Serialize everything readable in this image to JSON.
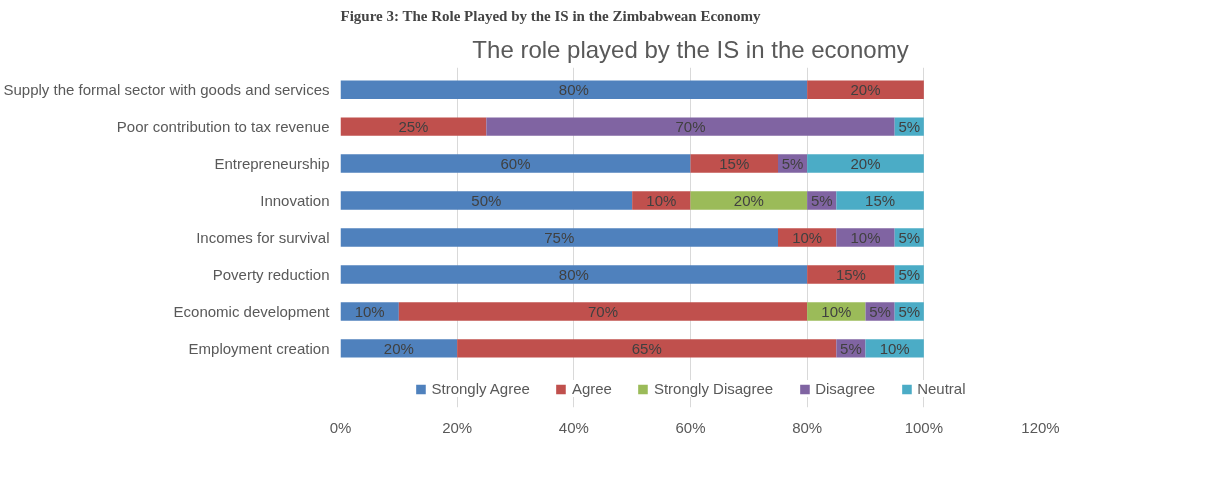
{
  "chart_data": {
    "type": "bar",
    "title": "The role played by the IS in the economy",
    "annotations": [
      "Figure 3: The Role Played by the IS in the Zimbabwean Economy"
    ],
    "orientation": "horizontal",
    "stacked": true,
    "categories": [
      "Supply the formal sector with goods and services",
      "Poor contribution to tax revenue",
      "Entrepreneurship",
      "Innovation",
      "Incomes for survival",
      "Poverty reduction",
      "Economic development",
      "Employment creation"
    ],
    "series": [
      {
        "name": "Strongly Agree",
        "color": "#4f81bd",
        "values": [
          80,
          0,
          60,
          50,
          75,
          80,
          10,
          20
        ],
        "value_labels": [
          "80%",
          null,
          "60%",
          "50%",
          "75%",
          "80%",
          "10%",
          "20%"
        ]
      },
      {
        "name": "Agree",
        "color": "#c0504d",
        "values": [
          20,
          25,
          15,
          10,
          10,
          15,
          70,
          65
        ],
        "value_labels": [
          "20%",
          "25%",
          "15%",
          "10%",
          "10%",
          "15%",
          "70%",
          "65%"
        ]
      },
      {
        "name": "Strongly Disagree",
        "color": "#9bbb59",
        "values": [
          0,
          0,
          0,
          20,
          0,
          0,
          10,
          0
        ],
        "value_labels": [
          null,
          null,
          null,
          "20%",
          null,
          null,
          "10%",
          null
        ]
      },
      {
        "name": "Disagree",
        "color": "#8064a2",
        "values": [
          0,
          70,
          5,
          5,
          10,
          0,
          5,
          5
        ],
        "value_labels": [
          null,
          "70%",
          "5%",
          "5%",
          "10%",
          null,
          "5%",
          "5%"
        ]
      },
      {
        "name": "Neutral",
        "color": "#4bacc6",
        "values": [
          0,
          5,
          20,
          15,
          5,
          5,
          5,
          10
        ],
        "value_labels": [
          null,
          "5%",
          "20%",
          "15%",
          "5%",
          "5%",
          "5%",
          "10%"
        ]
      }
    ],
    "xlim": [
      0,
      120
    ],
    "xticks": [
      {
        "value": 0,
        "label": "0%"
      },
      {
        "value": 20,
        "label": "20%"
      },
      {
        "value": 40,
        "label": "40%"
      },
      {
        "value": 60,
        "label": "60%"
      },
      {
        "value": 80,
        "label": "80%"
      },
      {
        "value": 100,
        "label": "100%"
      },
      {
        "value": 120,
        "label": "120%"
      }
    ],
    "grid": "x",
    "legend": "bottom"
  }
}
